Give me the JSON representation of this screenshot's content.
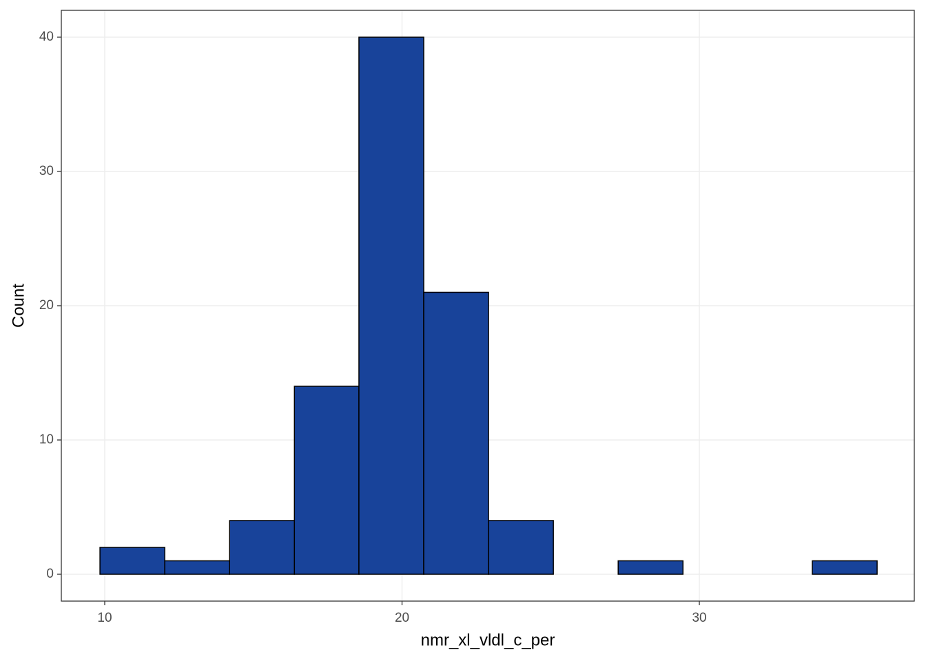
{
  "chart_data": {
    "type": "histogram",
    "x_label": "nmr_xl_vldl_c_per",
    "y_label": "Count",
    "bins": [
      9.84,
      12.02,
      14.2,
      16.38,
      18.55,
      20.73,
      22.91,
      25.09,
      27.27,
      29.45,
      31.63,
      33.8,
      35.98
    ],
    "counts": [
      2,
      1,
      4,
      14,
      40,
      21,
      4,
      0,
      1,
      0,
      0,
      1
    ],
    "color": "#18439a",
    "edge_color": "#000000",
    "xlim": [
      8.54,
      37.23
    ],
    "ylim": [
      -2,
      42
    ],
    "xticks": [
      10,
      20,
      30
    ],
    "yticks": [
      0,
      10,
      20,
      30,
      40
    ],
    "grid": true
  }
}
